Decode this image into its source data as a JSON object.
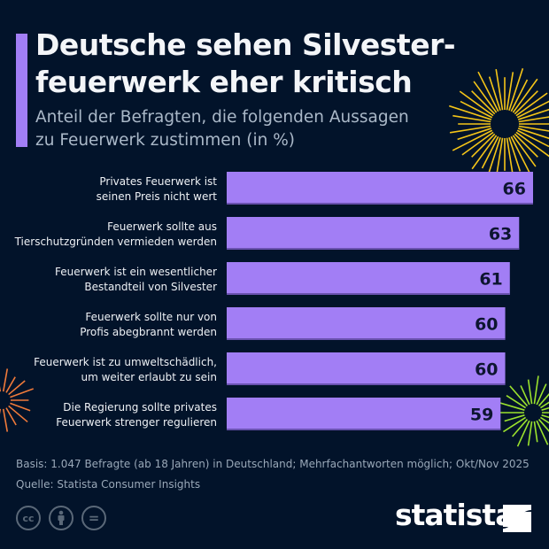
{
  "header": {
    "title_line1": "Deutsche sehen Silvester-",
    "title_line2": "feuerwerk eher kritisch",
    "subtitle_line1": "Anteil der Befragten, die folgenden Aussagen",
    "subtitle_line2": "zu Feuerwerk zustimmen (in %)"
  },
  "colors": {
    "background": "#02132a",
    "bar": "#a27ef5",
    "accent": "#a27ef5",
    "value_text": "#0d1530",
    "firework_yellow": "#f5c518",
    "firework_orange": "#f07a3a",
    "firework_green": "#9be22d"
  },
  "chart_data": {
    "type": "bar",
    "orientation": "horizontal",
    "title": "Deutsche sehen Silvesterfeuerwerk eher kritisch",
    "subtitle": "Anteil der Befragten, die folgenden Aussagen zu Feuerwerk zustimmen (in %)",
    "categories": [
      [
        "Privates Feuerwerk ist",
        "seinen Preis nicht wert"
      ],
      [
        "Feuerwerk sollte aus",
        "Tierschutzgründen vermieden werden"
      ],
      [
        "Feuerwerk ist ein wesentlicher",
        "Bestandteil von Silvester"
      ],
      [
        "Feuerwerk sollte nur von",
        "Profis abegbrannt werden"
      ],
      [
        "Feuerwerk ist zu umweltschädlich,",
        "um weiter erlaubt zu sein"
      ],
      [
        "Die Regierung sollte privates",
        "Feuerwerk strenger regulieren"
      ]
    ],
    "values": [
      66,
      63,
      61,
      60,
      60,
      59
    ],
    "grid": false,
    "xlim": [
      0,
      66
    ]
  },
  "footer": {
    "basis": "Basis: 1.047 Befragte (ab 18 Jahren) in Deutschland; Mehrfachantworten möglich; Okt/Nov 2025",
    "source": "Quelle: Statista Consumer Insights",
    "license_icons": [
      "cc",
      "by",
      "nd"
    ],
    "cc_label": "cc",
    "nd_label": "="
  },
  "brand": {
    "logo": "statista"
  }
}
